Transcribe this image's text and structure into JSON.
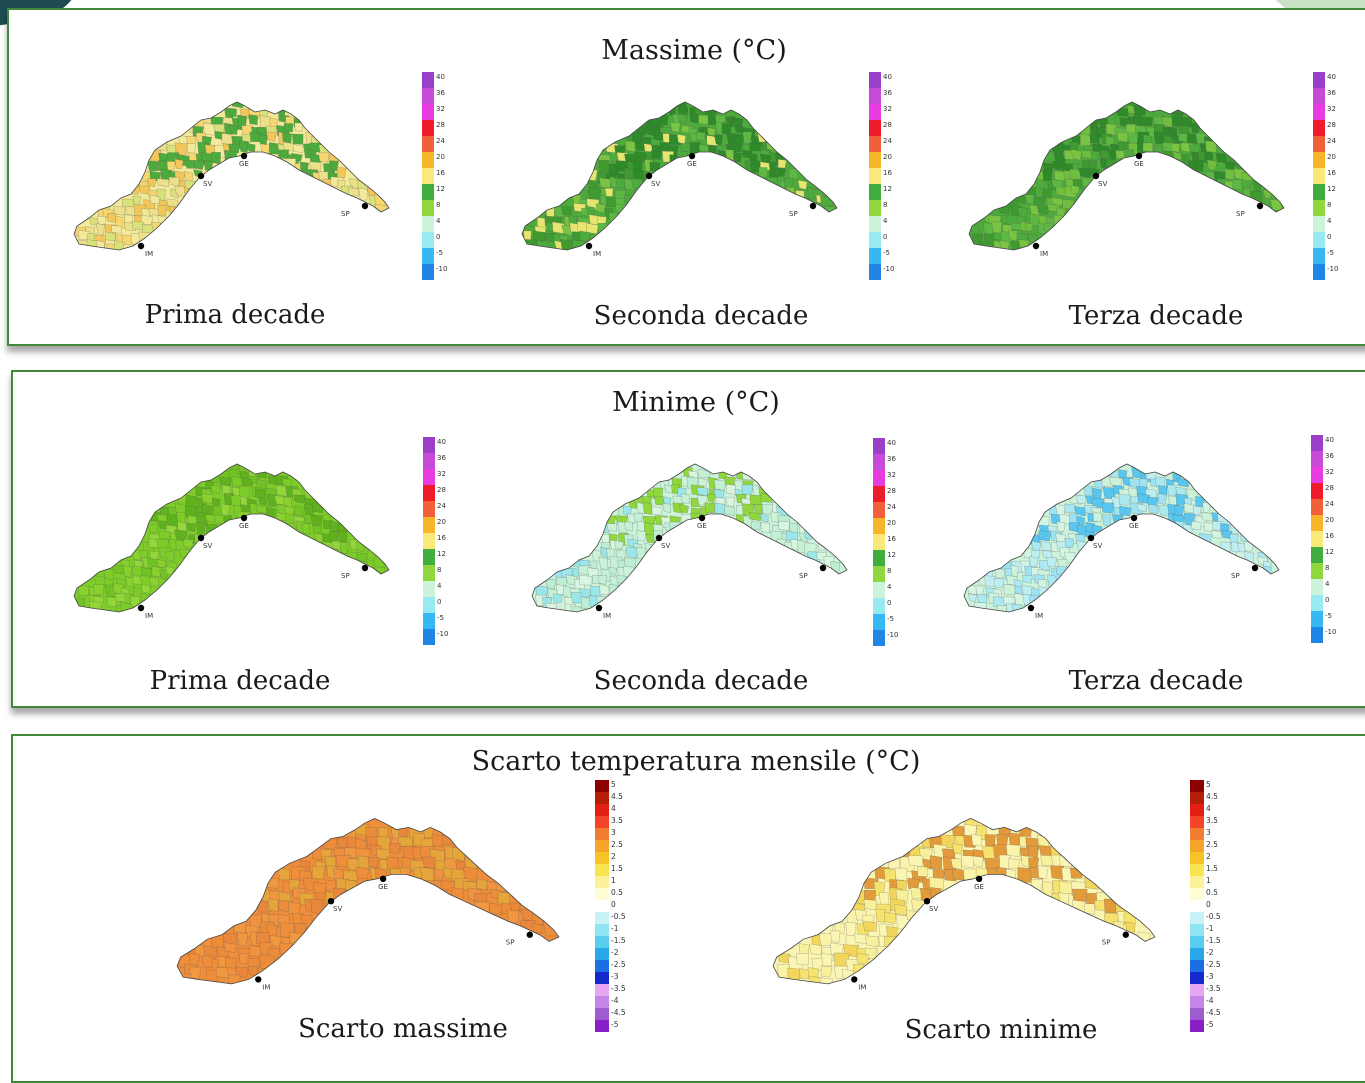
{
  "panels": {
    "max": {
      "title": "Massime (°C)",
      "maps": [
        {
          "label": "Prima decade",
          "palette": [
            "#f3e99b",
            "#ece08a",
            "#f6d66e",
            "#d9e27a",
            "#f2c75a"
          ],
          "forest": "#4daa3c"
        },
        {
          "label": "Seconda decade",
          "palette": [
            "#4daa3c",
            "#5cb843",
            "#3f9a30",
            "#e6e56f",
            "#79c442"
          ],
          "forest": "#2f8a2a"
        },
        {
          "label": "Terza decade",
          "palette": [
            "#4daa3c",
            "#5cb843",
            "#3f9a30",
            "#79c442",
            "#6fbe3d"
          ],
          "forest": "#2f8a2a"
        }
      ]
    },
    "min": {
      "title": "Minime (°C)",
      "maps": [
        {
          "label": "Prima decade",
          "palette": [
            "#7dcc29",
            "#88d12e",
            "#71c224",
            "#93d63a",
            "#7dcc29"
          ],
          "forest": "#5fb21d"
        },
        {
          "label": "Seconda decade",
          "palette": [
            "#ccf2d9",
            "#bdeed3",
            "#d9f5df",
            "#9be6e9",
            "#c4f0d6"
          ],
          "forest": "#8fd73c"
        },
        {
          "label": "Terza decade",
          "palette": [
            "#ccf2d9",
            "#bfeef1",
            "#9fe3f2",
            "#d4f4e3",
            "#aae9ef"
          ],
          "forest": "#58c6ee"
        }
      ]
    },
    "scarto": {
      "title": "Scarto temperatura mensile (°C)",
      "maps": [
        {
          "label": "Scarto massime",
          "palette": [
            "#ee8d3a",
            "#f09240",
            "#e9873a",
            "#f0983f",
            "#ec8c38"
          ],
          "forest": "#e6a53a"
        },
        {
          "label": "Scarto minime",
          "palette": [
            "#fbf5b4",
            "#f8f09a",
            "#f6e36e",
            "#faf3aa",
            "#f2d65c"
          ],
          "forest": "#e29a3a"
        }
      ]
    }
  },
  "cities": [
    {
      "code": "GE"
    },
    {
      "code": "SV"
    },
    {
      "code": "IM"
    },
    {
      "code": "SP"
    }
  ],
  "legend_temp": {
    "ticks": [
      "40",
      "36",
      "32",
      "28",
      "24",
      "20",
      "16",
      "12",
      "8",
      "4",
      "0",
      "-5",
      "-10"
    ],
    "colors": [
      "#9a3fc8",
      "#c64bd6",
      "#e83ce0",
      "#ee1b2a",
      "#f2603a",
      "#f7b52a",
      "#f8e979",
      "#3fae3e",
      "#8fd73c",
      "#ccf2d9",
      "#98eaf2",
      "#36b8f2",
      "#1f86e6"
    ]
  },
  "legend_anom": {
    "ticks": [
      "5",
      "4.5",
      "4",
      "3.5",
      "3",
      "2.5",
      "2",
      "1.5",
      "1",
      "0.5",
      "0",
      "-0.5",
      "-1",
      "-1.5",
      "-2",
      "-2.5",
      "-3",
      "-3.5",
      "-4",
      "-4.5",
      "-5"
    ],
    "colors": [
      "#8b0000",
      "#b51e08",
      "#e21f12",
      "#f3452a",
      "#f07d31",
      "#f5a62a",
      "#f7c427",
      "#f9e451",
      "#fbf29a",
      "#fffdd6",
      "#ffffff",
      "#c7f3f7",
      "#8fe6f2",
      "#58cdf0",
      "#28a8ea",
      "#1c6fe3",
      "#1428cc",
      "#e6a6f2",
      "#c685e9",
      "#9d5cd0",
      "#8a1fc6"
    ]
  }
}
